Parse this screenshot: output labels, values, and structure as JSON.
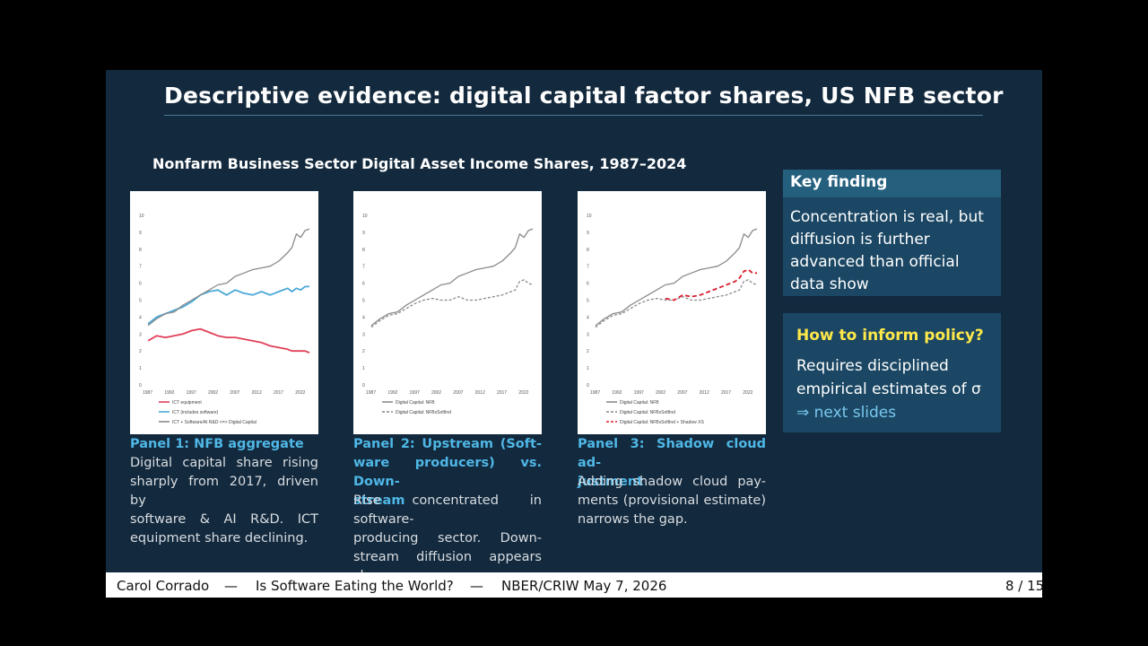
{
  "slide": {
    "title": "Descriptive evidence: digital capital factor shares, US NFB sector",
    "chart_heading": "Nonfarm Business Sector Digital Asset Income Shares, 1987–2024"
  },
  "panels": [
    {
      "caption_title_1": "Panel 1: NFB aggregate",
      "caption_body": [
        "Digital capital share rising",
        "sharply from 2017, driven by",
        "software & AI R&D. ICT",
        "equipment share declining."
      ]
    },
    {
      "caption_title_1": "Panel 2: Upstream (Soft-",
      "caption_title_2": "ware producers) vs. Down-",
      "caption_title_3": "stream",
      "caption_body": [
        "Rise concentrated in software-",
        "producing sector. Down-",
        "stream diffusion appears slow."
      ]
    },
    {
      "caption_title_1": "Panel 3: Shadow cloud ad-",
      "caption_title_2": "justment",
      "caption_body": [
        "Adding shadow cloud pay-",
        "ments (provisional estimate)",
        "narrows the gap."
      ]
    }
  ],
  "key_finding": {
    "title": "Key finding",
    "lines": [
      "Concentration is real, but",
      "diffusion is further",
      "advanced than official",
      "data show"
    ]
  },
  "policy": {
    "title": "How to inform policy?",
    "line_1": "Requires disciplined",
    "line_2": "empirical estimates of σ",
    "link": "⇒ next slides"
  },
  "footer": {
    "author": "Carol Corrado",
    "dash": "—",
    "talk": "Is Software Eating the World?",
    "venue": "NBER/CRIW May 7, 2026",
    "page": "8 / 15"
  },
  "colors": {
    "slide_bg": "#13293d",
    "accent_blue": "#4fb7e6",
    "accent_yellow": "#ffe84a",
    "series_gray": "#7f7f7f",
    "series_blue": "#4aa8d8",
    "series_red": "#e0405a",
    "series_red_dash": "#d81e2e"
  },
  "chart_data": [
    {
      "type": "line",
      "ylim": [
        0,
        10
      ],
      "y_ticks": [
        "0",
        "1",
        "2",
        "3",
        "4",
        "5",
        "6",
        "7",
        "8",
        "9",
        "10"
      ],
      "x_ticks": [
        "1987",
        "1992",
        "1997",
        "2002",
        "2007",
        "2012",
        "2017",
        "2022"
      ],
      "x": [
        1987,
        1989,
        1991,
        1993,
        1995,
        1997,
        1999,
        2001,
        2003,
        2005,
        2007,
        2009,
        2011,
        2013,
        2015,
        2017,
        2019,
        2020,
        2021,
        2022,
        2023,
        2024
      ],
      "legend": [
        "ICT equipment",
        "ICT (includes software)",
        "ICT + Software/AI R&D <=> Digital Capital"
      ],
      "series": [
        {
          "name": "ICT equipment",
          "style": "solid",
          "color": "#e0405a",
          "values": [
            2.6,
            2.9,
            2.8,
            2.9,
            3.0,
            3.2,
            3.3,
            3.1,
            2.9,
            2.8,
            2.8,
            2.7,
            2.6,
            2.5,
            2.3,
            2.2,
            2.1,
            2.0,
            2.0,
            2.0,
            2.0,
            1.9
          ]
        },
        {
          "name": "ICT (includes software)",
          "style": "solid",
          "color": "#4aa8d8",
          "values": [
            3.6,
            4.0,
            4.2,
            4.4,
            4.6,
            4.9,
            5.3,
            5.5,
            5.6,
            5.3,
            5.6,
            5.4,
            5.3,
            5.5,
            5.3,
            5.5,
            5.7,
            5.5,
            5.7,
            5.6,
            5.8,
            5.8
          ]
        },
        {
          "name": "ICT + Software/AI R&D <=> Digital Capital",
          "style": "solid",
          "color": "#8a8a8a",
          "values": [
            3.5,
            3.9,
            4.2,
            4.3,
            4.7,
            5.0,
            5.3,
            5.6,
            5.9,
            6.0,
            6.4,
            6.6,
            6.8,
            6.9,
            7.0,
            7.3,
            7.8,
            8.1,
            8.9,
            8.7,
            9.1,
            9.2
          ]
        }
      ]
    },
    {
      "type": "line",
      "ylim": [
        0,
        10
      ],
      "y_ticks": [
        "0",
        "1",
        "2",
        "3",
        "4",
        "5",
        "6",
        "7",
        "8",
        "9",
        "10"
      ],
      "x_ticks": [
        "1987",
        "1992",
        "1997",
        "2002",
        "2007",
        "2012",
        "2017",
        "2022"
      ],
      "x": [
        1987,
        1989,
        1991,
        1993,
        1995,
        1997,
        1999,
        2001,
        2003,
        2005,
        2007,
        2009,
        2011,
        2013,
        2015,
        2017,
        2019,
        2020,
        2021,
        2022,
        2023,
        2024
      ],
      "legend": [
        "Digital Capital: NFB",
        "Digital Capital: NFBxSoftInd"
      ],
      "series": [
        {
          "name": "Digital Capital: NFB",
          "style": "solid",
          "color": "#8a8a8a",
          "values": [
            3.5,
            3.9,
            4.2,
            4.3,
            4.7,
            5.0,
            5.3,
            5.6,
            5.9,
            6.0,
            6.4,
            6.6,
            6.8,
            6.9,
            7.0,
            7.3,
            7.8,
            8.1,
            8.9,
            8.7,
            9.1,
            9.2
          ]
        },
        {
          "name": "Digital Capital: NFBxSoftInd",
          "style": "dashed",
          "color": "#8a8a8a",
          "values": [
            3.4,
            3.8,
            4.1,
            4.2,
            4.5,
            4.8,
            5.0,
            5.1,
            5.0,
            5.0,
            5.2,
            5.0,
            5.0,
            5.1,
            5.2,
            5.3,
            5.5,
            5.6,
            6.1,
            6.2,
            6.0,
            5.9
          ]
        }
      ]
    },
    {
      "type": "line",
      "ylim": [
        0,
        10
      ],
      "y_ticks": [
        "0",
        "1",
        "2",
        "3",
        "4",
        "5",
        "6",
        "7",
        "8",
        "9",
        "10"
      ],
      "x_ticks": [
        "1987",
        "1992",
        "1997",
        "2002",
        "2007",
        "2012",
        "2017",
        "2022"
      ],
      "x": [
        1987,
        1989,
        1991,
        1993,
        1995,
        1997,
        1999,
        2001,
        2003,
        2005,
        2007,
        2009,
        2011,
        2013,
        2015,
        2017,
        2019,
        2020,
        2021,
        2022,
        2023,
        2024
      ],
      "legend": [
        "Digital Capital: NFB",
        "Digital Capital: NFBxSoftInd",
        "Digital Capital: NFBxSoftInd + Shadow XS"
      ],
      "series": [
        {
          "name": "Digital Capital: NFB",
          "style": "solid",
          "color": "#8a8a8a",
          "values": [
            3.5,
            3.9,
            4.2,
            4.3,
            4.7,
            5.0,
            5.3,
            5.6,
            5.9,
            6.0,
            6.4,
            6.6,
            6.8,
            6.9,
            7.0,
            7.3,
            7.8,
            8.1,
            8.9,
            8.7,
            9.1,
            9.2
          ]
        },
        {
          "name": "Digital Capital: NFBxSoftInd",
          "style": "dashed",
          "color": "#8a8a8a",
          "values": [
            3.4,
            3.8,
            4.1,
            4.2,
            4.5,
            4.8,
            5.0,
            5.1,
            5.0,
            5.0,
            5.2,
            5.0,
            5.0,
            5.1,
            5.2,
            5.3,
            5.5,
            5.6,
            6.1,
            6.2,
            6.0,
            5.9
          ]
        },
        {
          "name": "Digital Capital: NFBxSoftInd + Shadow XS",
          "style": "dashed",
          "color": "#d81e2e",
          "x_start": 2003,
          "values": [
            null,
            null,
            null,
            null,
            null,
            null,
            null,
            null,
            5.1,
            5.0,
            5.3,
            5.2,
            5.3,
            5.5,
            5.7,
            5.9,
            6.1,
            6.3,
            6.7,
            6.8,
            6.6,
            6.6
          ]
        }
      ]
    }
  ]
}
